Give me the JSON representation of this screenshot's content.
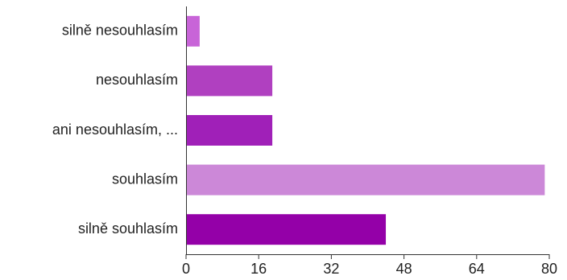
{
  "chart_data": {
    "type": "bar",
    "orientation": "horizontal",
    "categories": [
      "silně nesouhlasím",
      "nesouhlasím",
      "ani nesouhlasím, ...",
      "souhlasím",
      "silně souhlasím"
    ],
    "values": [
      3,
      19,
      19,
      79,
      44
    ],
    "bar_colors": [
      "#c864d8",
      "#b040c0",
      "#a020b8",
      "#cc88d8",
      "#9400a8"
    ],
    "xlim": [
      0,
      80
    ],
    "xticks": [
      0,
      16,
      32,
      48,
      64,
      80
    ],
    "title": "",
    "xlabel": "",
    "ylabel": "",
    "grid": false
  }
}
